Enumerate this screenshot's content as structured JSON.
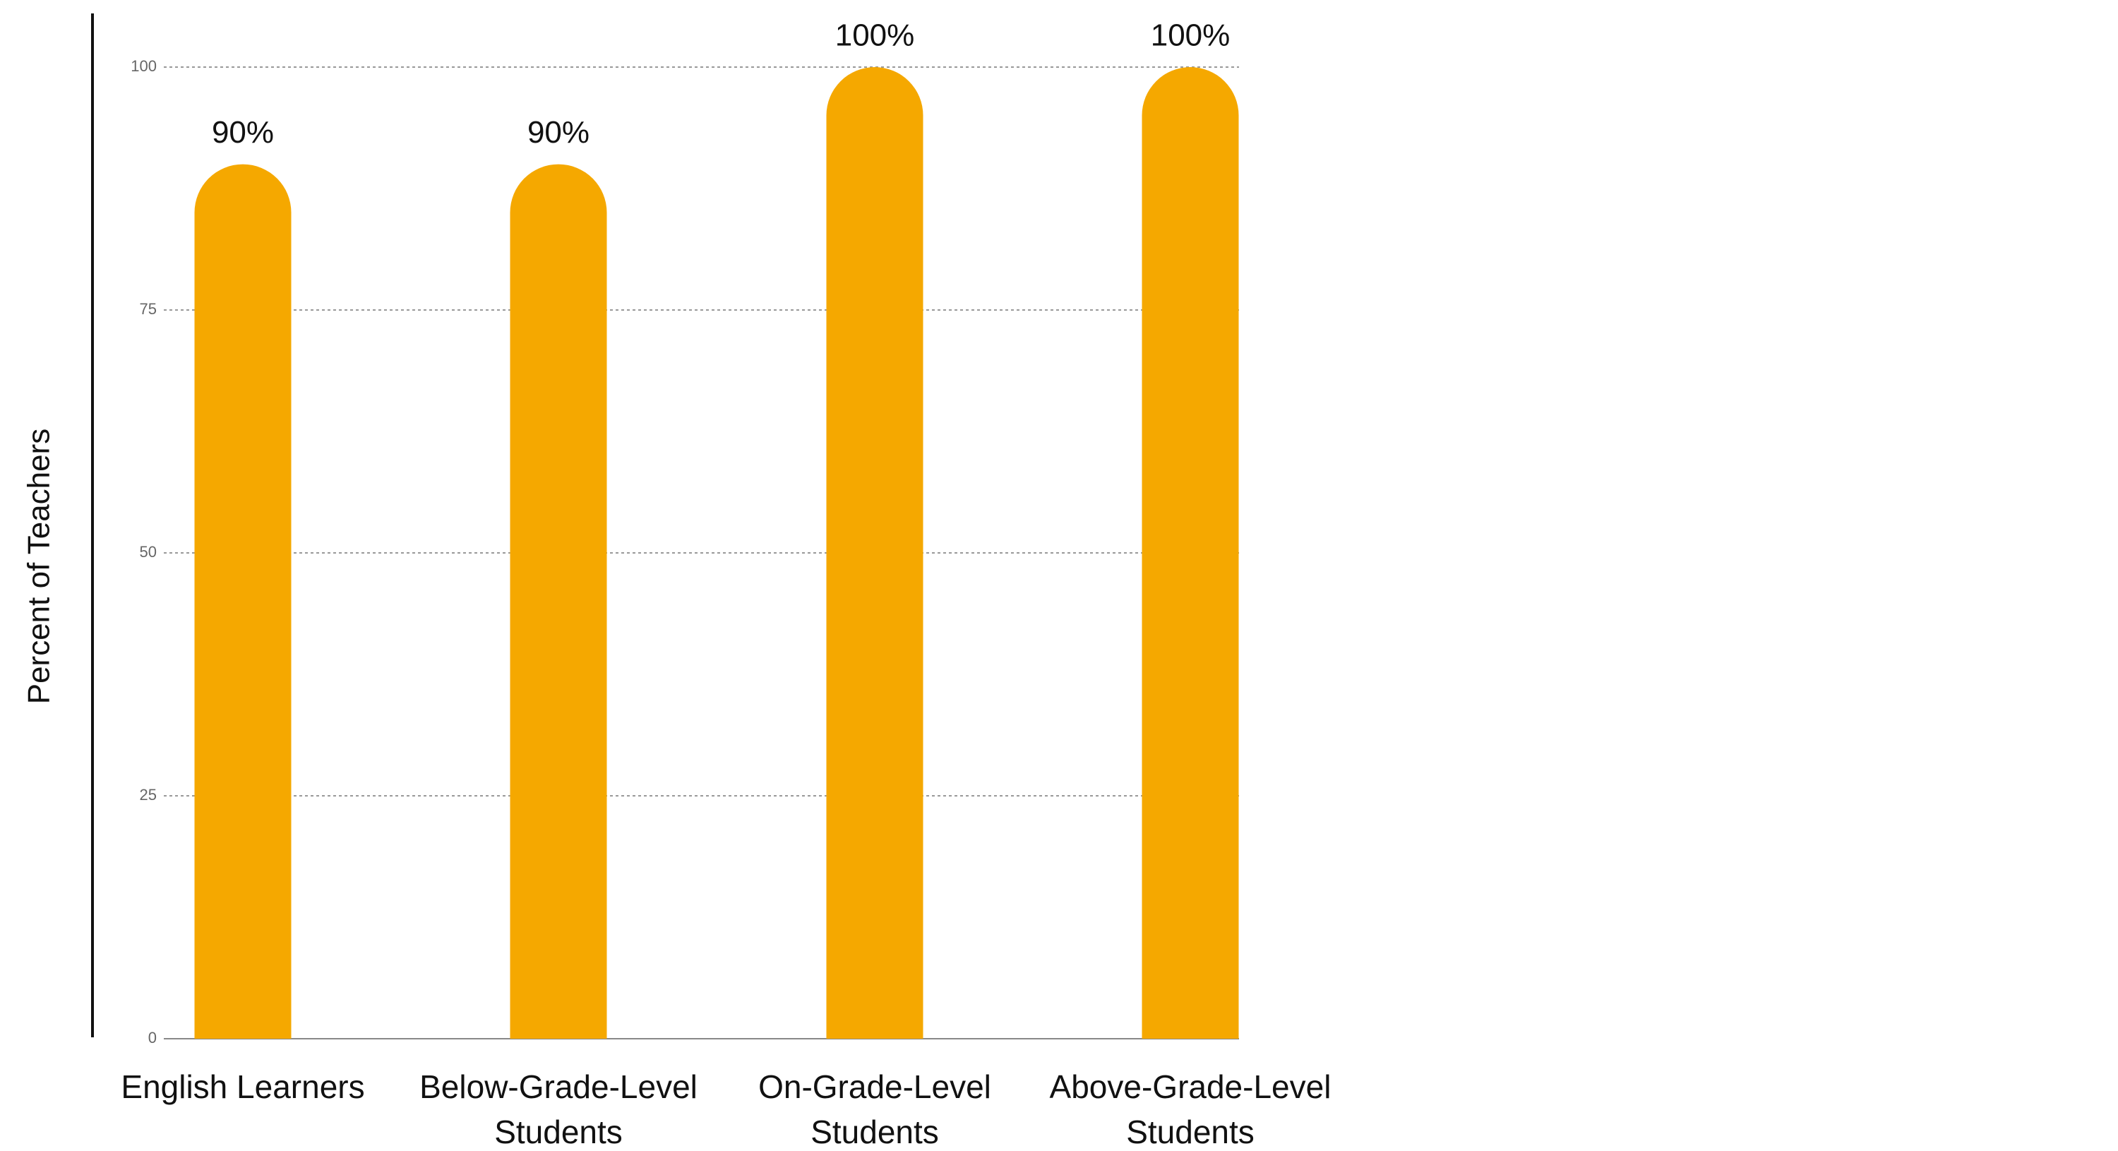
{
  "chart_data": {
    "type": "bar",
    "y_label": "Percent of Teachers",
    "categories": [
      [
        "English Learners"
      ],
      [
        "Below-Grade-Level",
        "Students"
      ],
      [
        "On-Grade-Level",
        "Students"
      ],
      [
        "Above-Grade-Level",
        "Students"
      ]
    ],
    "values": [
      90,
      90,
      100,
      100
    ],
    "value_labels": [
      "90%",
      "90%",
      "100%",
      "100%"
    ],
    "color": "#f5a800",
    "ylim": [
      0,
      100
    ],
    "yticks": [
      0,
      25,
      50,
      75,
      100
    ],
    "grid": true
  }
}
